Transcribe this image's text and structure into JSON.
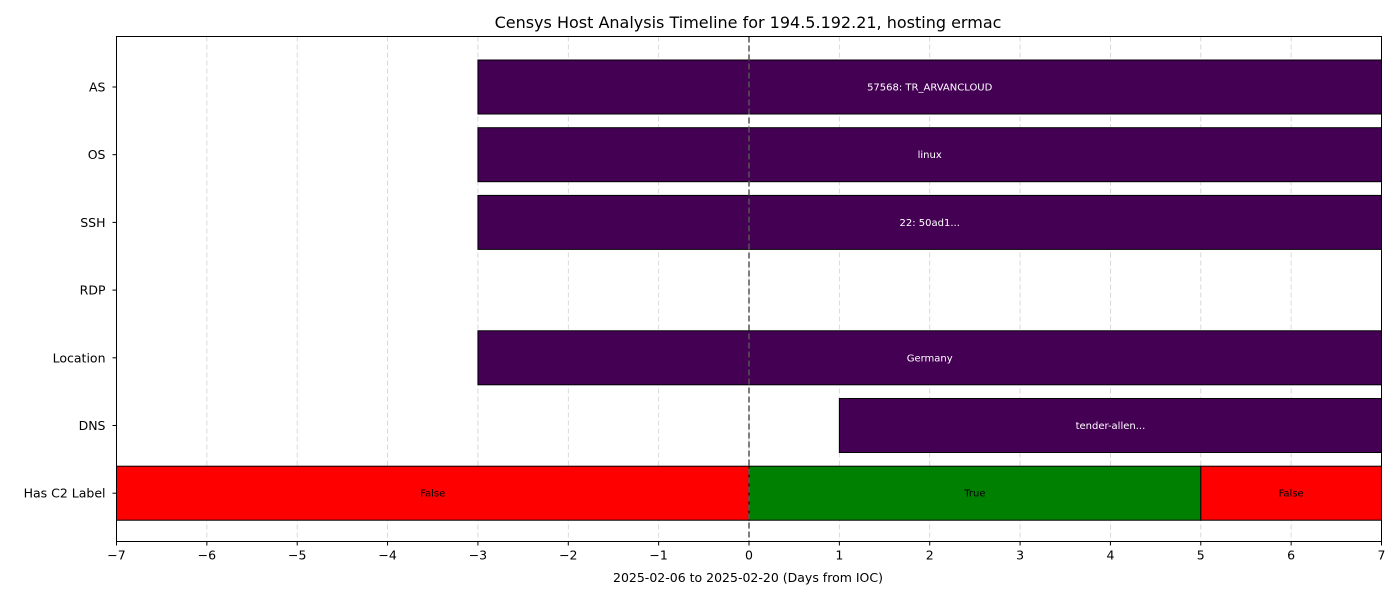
{
  "chart_data": {
    "type": "timeline",
    "title": "Censys Host Analysis Timeline for 194.5.192.21, hosting ermac",
    "xlabel": "2025-02-06 to 2025-02-20 (Days from IOC)",
    "ylabel": "",
    "xlim": [
      -7,
      7
    ],
    "x_ticks": [
      -7,
      -6,
      -5,
      -4,
      -3,
      -2,
      -1,
      0,
      1,
      2,
      3,
      4,
      5,
      6,
      7
    ],
    "x_tick_labels": [
      "−7",
      "−6",
      "−5",
      "−4",
      "−3",
      "−2",
      "−1",
      "0",
      "1",
      "2",
      "3",
      "4",
      "5",
      "6",
      "7"
    ],
    "grid": "vertical dashed",
    "reference_line_x": 0,
    "rows": [
      "AS",
      "OS",
      "SSH",
      "RDP",
      "Location",
      "DNS",
      "Has C2 Label"
    ],
    "segments": [
      {
        "row": "AS",
        "start": -3,
        "end": 7,
        "label": "57568: TR_ARVANCLOUD",
        "color": "#440154",
        "text_color": "#ffffff"
      },
      {
        "row": "OS",
        "start": -3,
        "end": 7,
        "label": "linux",
        "color": "#440154",
        "text_color": "#ffffff"
      },
      {
        "row": "SSH",
        "start": -3,
        "end": 7,
        "label": "22: 50ad1...",
        "color": "#440154",
        "text_color": "#ffffff"
      },
      {
        "row": "Location",
        "start": -3,
        "end": 7,
        "label": "Germany",
        "color": "#440154",
        "text_color": "#ffffff"
      },
      {
        "row": "DNS",
        "start": 1,
        "end": 7,
        "label": "tender-allen...",
        "color": "#440154",
        "text_color": "#ffffff"
      },
      {
        "row": "Has C2 Label",
        "start": -7,
        "end": 0,
        "label": "False",
        "color": "#ff0000",
        "text_color": "#000000"
      },
      {
        "row": "Has C2 Label",
        "start": 0,
        "end": 5,
        "label": "True",
        "color": "#008000",
        "text_color": "#000000"
      },
      {
        "row": "Has C2 Label",
        "start": 5,
        "end": 7,
        "label": "False",
        "color": "#ff0000",
        "text_color": "#000000"
      }
    ]
  }
}
